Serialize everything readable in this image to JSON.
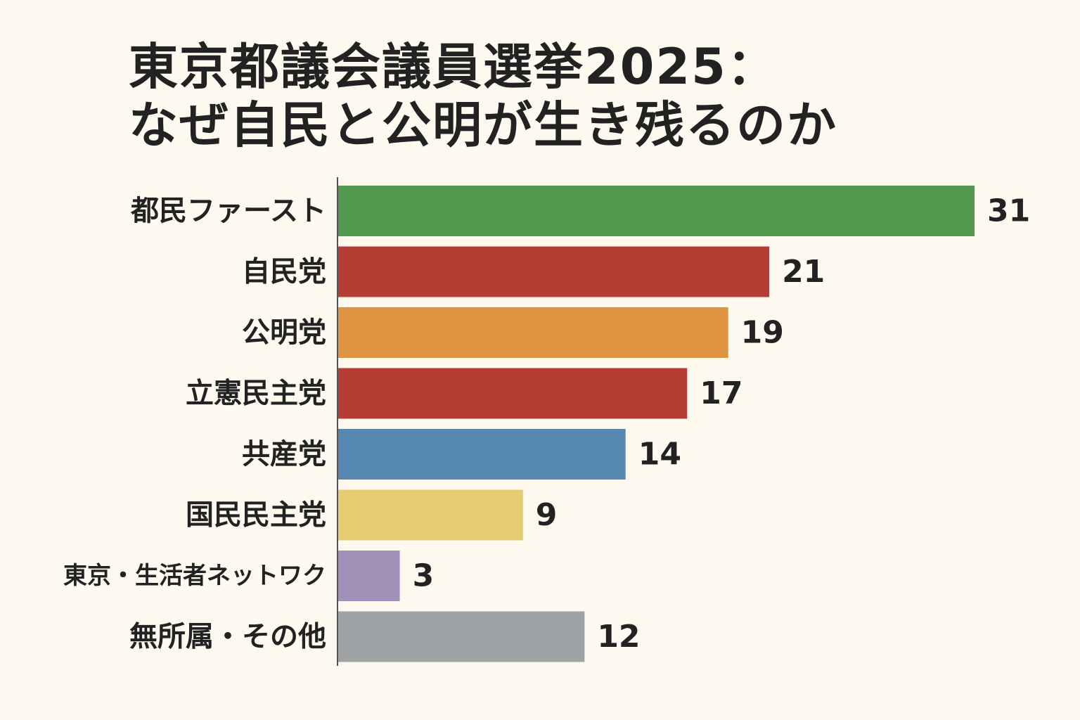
{
  "title": {
    "line1": "東京都議会議員選挙2025：",
    "line2": "なぜ自民と公明が生き残るのか"
  },
  "chart_data": {
    "type": "bar",
    "orientation": "horizontal",
    "categories": [
      "都民ファースト",
      "自民党",
      "公明党",
      "立憲民主党",
      "共産党",
      "国民民主党",
      "東京・生活者ネットワク",
      "無所属・その他"
    ],
    "values": [
      31,
      21,
      19,
      17,
      14,
      9,
      3,
      12
    ],
    "colors": [
      "#53984f",
      "#b53d34",
      "#de9440",
      "#b53d34",
      "#5587b1",
      "#e6cc70",
      "#a191b8",
      "#a0a3a6"
    ],
    "xlim": [
      0,
      31
    ],
    "data_labels": true,
    "grid": false,
    "legend": "none",
    "xlabel": "",
    "ylabel": ""
  }
}
